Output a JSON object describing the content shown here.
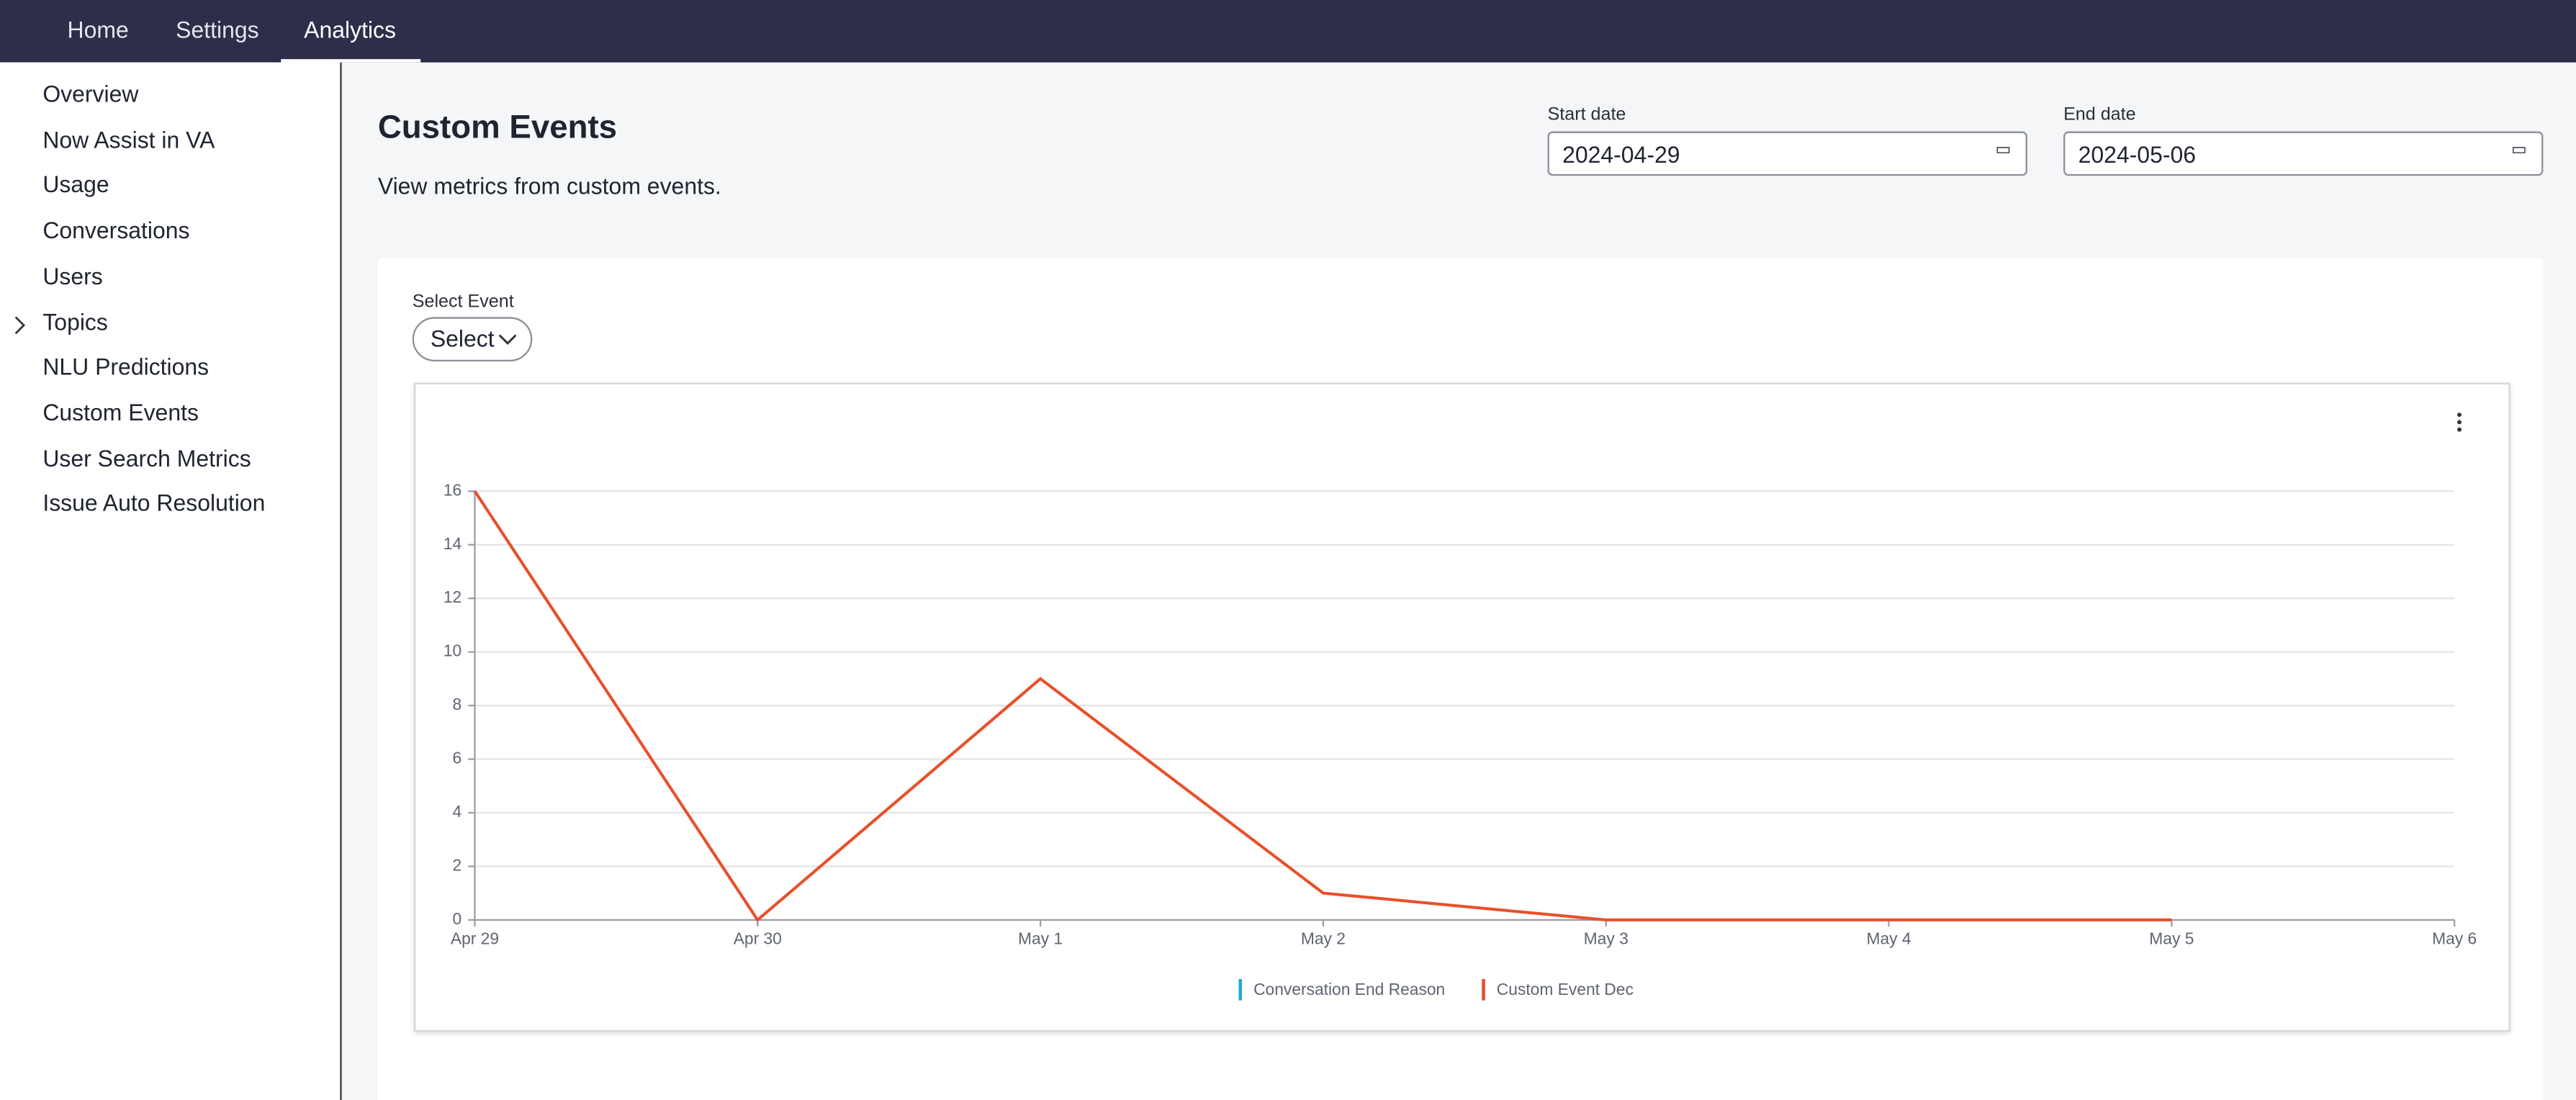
{
  "nav": {
    "tabs": [
      "Home",
      "Settings",
      "Analytics"
    ],
    "active": 2
  },
  "sidebar": {
    "items": [
      "Overview",
      "Now Assist in VA",
      "Usage",
      "Conversations",
      "Users",
      "Topics",
      "NLU Predictions",
      "Custom Events",
      "User Search Metrics",
      "Issue Auto Resolution"
    ]
  },
  "header": {
    "title": "Custom Events",
    "subtitle": "View metrics from custom events."
  },
  "dates": {
    "start_label": "Start date",
    "start_value": "2024-04-29",
    "end_label": "End date",
    "end_value": "2024-05-06"
  },
  "select": {
    "label": "Select Event",
    "button": "Select"
  },
  "chart_data": {
    "type": "line",
    "categories": [
      "Apr 29",
      "Apr 30",
      "May 1",
      "May 2",
      "May 3",
      "May 4",
      "May 5",
      "May 6"
    ],
    "series": [
      {
        "name": "Conversation End Reason",
        "color": "#1fa8d8",
        "values": [
          null,
          null,
          null,
          null,
          null,
          null,
          null,
          null
        ]
      },
      {
        "name": "Custom Event Dec",
        "color": "#e8502a",
        "values": [
          16,
          0,
          9,
          1,
          0,
          0,
          0,
          null
        ]
      }
    ],
    "ylim": [
      0,
      16
    ],
    "yticks": [
      0,
      2,
      4,
      6,
      8,
      10,
      12,
      14,
      16
    ],
    "grid": true
  }
}
